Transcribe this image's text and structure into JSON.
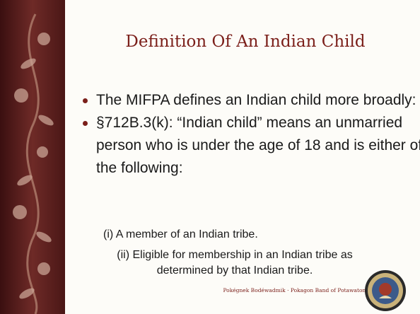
{
  "slide": {
    "title": "Definition Of An Indian Child",
    "bullets": [
      "The MIFPA defines an Indian child more broadly:",
      "§712B.3(k): “Indian child” means an unmarried person who is under the age of 18 and is either of the following:"
    ],
    "sub_items": [
      "(i) A member of an Indian tribe.",
      "(ii) Eligible for membership in an Indian tribe as determined by that Indian tribe."
    ],
    "footer": "Pokégnek Bodéwadmik · Pokagon Band of Potawatomi"
  }
}
